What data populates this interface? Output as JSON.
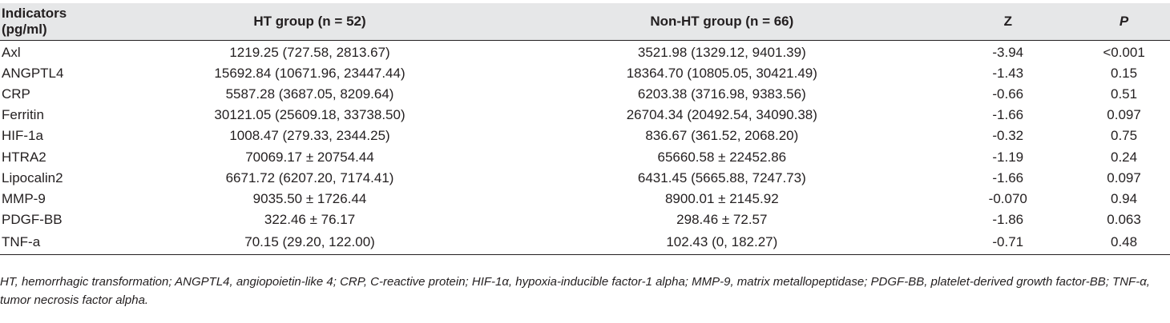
{
  "table": {
    "headers": {
      "indicators": "Indicators (pg/ml)",
      "ht_group": "HT group (n = 52)",
      "non_ht_group": "Non-HT group (n = 66)",
      "z": "Z",
      "p": "P"
    },
    "rows": [
      {
        "indicator": "Axl",
        "ht": "1219.25 (727.58, 2813.67)",
        "nonht": "3521.98 (1329.12, 9401.39)",
        "z": "-3.94",
        "p": "<0.001"
      },
      {
        "indicator": "ANGPTL4",
        "ht": "15692.84 (10671.96, 23447.44)",
        "nonht": "18364.70 (10805.05, 30421.49)",
        "z": "-1.43",
        "p": "0.15"
      },
      {
        "indicator": "CRP",
        "ht": "5587.28 (3687.05, 8209.64)",
        "nonht": "6203.38 (3716.98, 9383.56)",
        "z": "-0.66",
        "p": "0.51"
      },
      {
        "indicator": "Ferritin",
        "ht": "30121.05 (25609.18, 33738.50)",
        "nonht": "26704.34 (20492.54, 34090.38)",
        "z": "-1.66",
        "p": "0.097"
      },
      {
        "indicator": "HIF-1a",
        "ht": "1008.47 (279.33, 2344.25)",
        "nonht": "836.67 (361.52, 2068.20)",
        "z": "-0.32",
        "p": "0.75"
      },
      {
        "indicator": "HTRA2",
        "ht": "70069.17 ± 20754.44",
        "nonht": "65660.58 ± 22452.86",
        "z": "-1.19",
        "p": "0.24"
      },
      {
        "indicator": "Lipocalin2",
        "ht": "6671.72 (6207.20, 7174.41)",
        "nonht": "6431.45 (5665.88, 7247.73)",
        "z": "-1.66",
        "p": "0.097"
      },
      {
        "indicator": "MMP-9",
        "ht": "9035.50 ± 1726.44",
        "nonht": "8900.01 ± 2145.92",
        "z": "-0.070",
        "p": "0.94"
      },
      {
        "indicator": "PDGF-BB",
        "ht": "322.46 ± 76.17",
        "nonht": "298.46 ± 72.57",
        "z": "-1.86",
        "p": "0.063"
      },
      {
        "indicator": "TNF-a",
        "ht": "70.15 (29.20, 122.00)",
        "nonht": "102.43 (0, 182.27)",
        "z": "-0.71",
        "p": "0.48"
      }
    ]
  },
  "footnote": "HT, hemorrhagic transformation; ANGPTL4, angiopoietin-like 4; CRP, C-reactive protein; HIF-1α, hypoxia-inducible factor-1 alpha; MMP-9, matrix metallopeptidase; PDGF-BB, platelet-derived growth factor-BB; TNF-α, tumor necrosis factor alpha."
}
